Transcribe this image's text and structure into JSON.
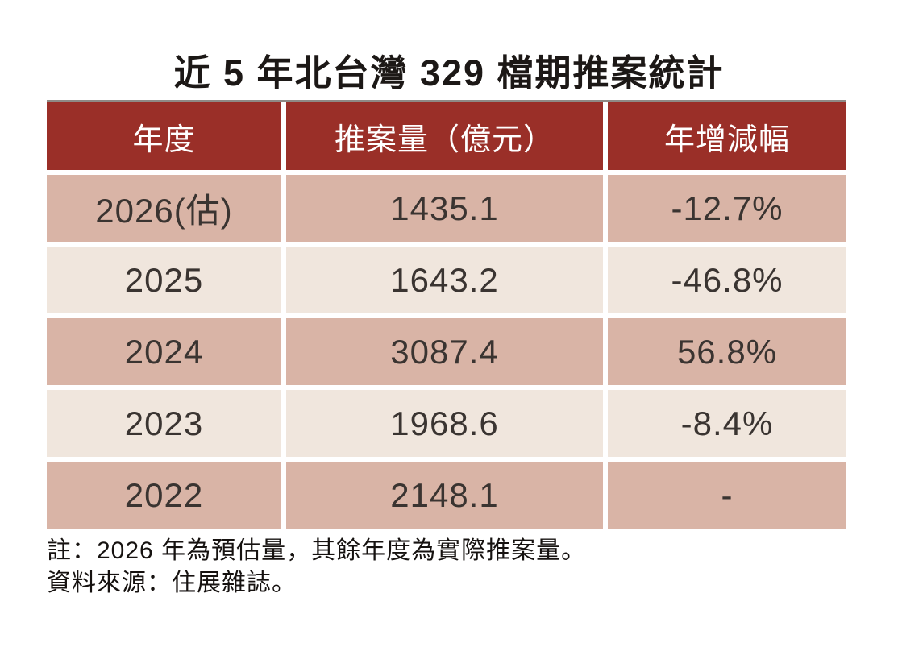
{
  "title": "近 5 年北台灣 329 檔期推案統計",
  "table": {
    "columns": [
      "年度",
      "推案量（億元）",
      "年增減幅"
    ],
    "rows": [
      {
        "year": "2026(估)",
        "volume": "1435.1",
        "yoy": "-12.7%"
      },
      {
        "year": "2025",
        "volume": "1643.2",
        "yoy": "-46.8%"
      },
      {
        "year": "2024",
        "volume": "3087.4",
        "yoy": "56.8%"
      },
      {
        "year": "2023",
        "volume": "1968.6",
        "yoy": "-8.4%"
      },
      {
        "year": "2022",
        "volume": "2148.1",
        "yoy": "-"
      }
    ]
  },
  "notes": {
    "note": "註：2026 年為預估量，其餘年度為實際推案量。",
    "source": "資料來源：住展雜誌。"
  },
  "colors": {
    "header_bg": "#9a2f28",
    "header_text": "#ffffff",
    "row_odd_bg": "#d9b4a6",
    "row_even_bg": "#f0e6dd",
    "cell_text": "#3a3431",
    "title_text": "#1c1816",
    "page_bg": "#ffffff",
    "table_top_border": "#8f8a86"
  },
  "chart_data": {
    "type": "table",
    "title": "近 5 年北台灣 329 檔期推案統計",
    "columns": [
      "年度",
      "推案量（億元）",
      "年增減幅"
    ],
    "rows": [
      [
        "2026(估)",
        1435.1,
        "-12.7%"
      ],
      [
        "2025",
        1643.2,
        "-46.8%"
      ],
      [
        "2024",
        3087.4,
        "56.8%"
      ],
      [
        "2023",
        1968.6,
        "-8.4%"
      ],
      [
        "2022",
        2148.1,
        "-"
      ]
    ],
    "notes": [
      "註：2026 年為預估量，其餘年度為實際推案量。",
      "資料來源：住展雜誌。"
    ],
    "layout_hints": {
      "header_style": "dark-red with white text",
      "row_striping": "alternating dusty-pink / cream starting pink",
      "alignment": "all cells centered"
    }
  }
}
